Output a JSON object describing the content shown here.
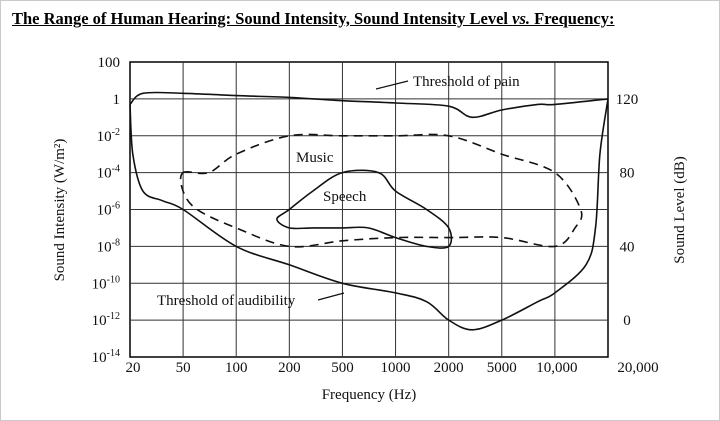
{
  "title_parts": {
    "a": "The Range of Human Hearing: Sound Intensity, Sound Intensity Level ",
    "b": "vs.",
    "c": " Frequency",
    "d": ":"
  },
  "chart_data": {
    "type": "line",
    "xlabel": "Frequency (Hz)",
    "ylabel_left": "Sound Intensity (W/m²)",
    "ylabel_right": "Sound Level (dB)",
    "x_ticks": [
      "20",
      "50",
      "100",
      "200",
      "500",
      "1000",
      "2000",
      "5000",
      "10,000",
      "20,000"
    ],
    "y_ticks_left": [
      {
        "base": "100",
        "exp": ""
      },
      {
        "base": "1",
        "exp": ""
      },
      {
        "base": "10",
        "exp": "-2"
      },
      {
        "base": "10",
        "exp": "-4"
      },
      {
        "base": "10",
        "exp": "-6"
      },
      {
        "base": "10",
        "exp": "-8"
      },
      {
        "base": "10",
        "exp": "-10"
      },
      {
        "base": "10",
        "exp": "-12"
      },
      {
        "base": "10",
        "exp": "-14"
      }
    ],
    "y_ticks_right": [
      "120",
      "80",
      "40",
      "0"
    ],
    "grid": true,
    "annotations": [
      "Threshold of pain",
      "Music",
      "Speech",
      "Threshold of audibility"
    ],
    "series": [
      {
        "name": "Threshold of pain",
        "style": "solid",
        "closed": false,
        "points": [
          [
            20,
            0.5
          ],
          [
            25,
            2
          ],
          [
            50,
            2
          ],
          [
            100,
            1.5
          ],
          [
            200,
            1.2
          ],
          [
            500,
            0.8
          ],
          [
            1000,
            0.6
          ],
          [
            2000,
            0.4
          ],
          [
            3000,
            0.1
          ],
          [
            5000,
            0.25
          ],
          [
            8000,
            0.5
          ],
          [
            10000,
            0.5
          ],
          [
            20000,
            1
          ]
        ]
      },
      {
        "name": "Threshold of audibility",
        "style": "solid",
        "closed": false,
        "points": [
          [
            20,
            0.5
          ],
          [
            21,
            0.001
          ],
          [
            25,
            1e-05
          ],
          [
            35,
            3e-06
          ],
          [
            50,
            1e-06
          ],
          [
            100,
            1e-08
          ],
          [
            200,
            1e-09
          ],
          [
            500,
            1e-10
          ],
          [
            1000,
            3e-11
          ],
          [
            1500,
            1e-11
          ],
          [
            2000,
            1e-12
          ],
          [
            3000,
            3e-13
          ],
          [
            5000,
            1e-12
          ],
          [
            8000,
            1e-11
          ],
          [
            10000,
            3e-11
          ],
          [
            15000,
            1e-09
          ],
          [
            17000,
            1e-07
          ],
          [
            18000,
            0.001
          ],
          [
            20000,
            1
          ]
        ]
      },
      {
        "name": "Music",
        "style": "dashed",
        "closed": true,
        "points": [
          [
            50,
            0.0001
          ],
          [
            70,
            0.0001
          ],
          [
            100,
            0.001
          ],
          [
            200,
            0.01
          ],
          [
            500,
            0.01
          ],
          [
            1000,
            0.01
          ],
          [
            2000,
            0.01
          ],
          [
            5000,
            0.001
          ],
          [
            10000,
            0.0001
          ],
          [
            14000,
            1e-06
          ],
          [
            13000,
            1e-07
          ],
          [
            10000,
            1e-08
          ],
          [
            5000,
            3e-08
          ],
          [
            2000,
            3e-08
          ],
          [
            1000,
            3e-08
          ],
          [
            500,
            2e-08
          ],
          [
            200,
            1e-08
          ],
          [
            100,
            1e-07
          ],
          [
            60,
            1e-06
          ],
          [
            50,
            1e-05
          ]
        ]
      },
      {
        "name": "Speech",
        "style": "solid",
        "closed": true,
        "points": [
          [
            200,
            1e-06
          ],
          [
            300,
            1e-05
          ],
          [
            500,
            0.0001
          ],
          [
            800,
            0.0001
          ],
          [
            1000,
            1e-05
          ],
          [
            1500,
            1e-06
          ],
          [
            2000,
            1e-07
          ],
          [
            2000,
            1e-08
          ],
          [
            1500,
            1e-08
          ],
          [
            1000,
            3e-08
          ],
          [
            700,
            1e-07
          ],
          [
            500,
            1e-07
          ],
          [
            300,
            1e-07
          ],
          [
            200,
            1e-07
          ],
          [
            170,
            3e-07
          ]
        ]
      }
    ]
  }
}
